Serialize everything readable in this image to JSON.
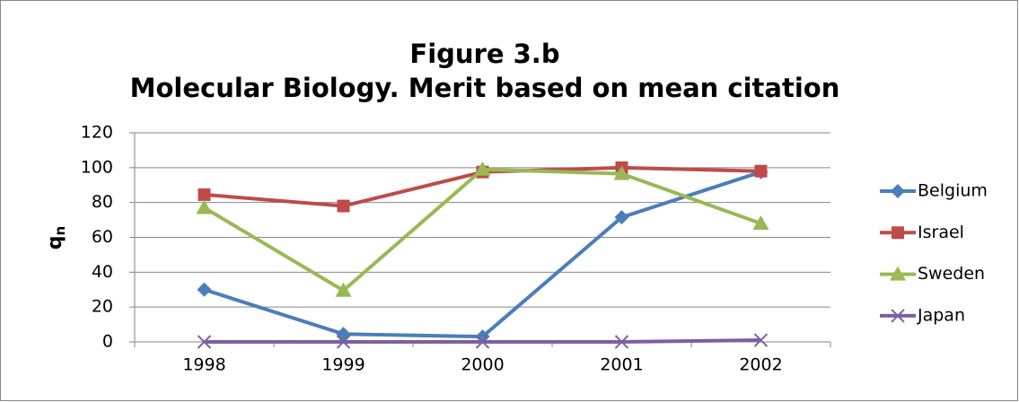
{
  "chart_data": {
    "type": "line",
    "title": "Figure 3.b",
    "subtitle": "Molecular Biology. Merit based on mean citation",
    "ylabel": "q",
    "ylabel_subscript": "n",
    "categories": [
      "1998",
      "1999",
      "2000",
      "2001",
      "2002"
    ],
    "series": [
      {
        "name": "Belgium",
        "color": "#4a7ebb",
        "marker": "diamond",
        "values": [
          30,
          4.5,
          3,
          71.5,
          97.5
        ]
      },
      {
        "name": "Israel",
        "color": "#be4b48",
        "marker": "square",
        "values": [
          84.5,
          78,
          97.5,
          100,
          98
        ]
      },
      {
        "name": "Sweden",
        "color": "#98b954",
        "marker": "triangle",
        "values": [
          77,
          29.5,
          99,
          96.5,
          68
        ]
      },
      {
        "name": "Japan",
        "color": "#7d60a0",
        "marker": "x",
        "values": [
          0,
          0,
          0,
          0,
          1
        ]
      }
    ],
    "ylim": [
      0,
      120
    ],
    "yticks": [
      0,
      20,
      40,
      60,
      80,
      100,
      120
    ],
    "grid": true,
    "legend": "right"
  }
}
